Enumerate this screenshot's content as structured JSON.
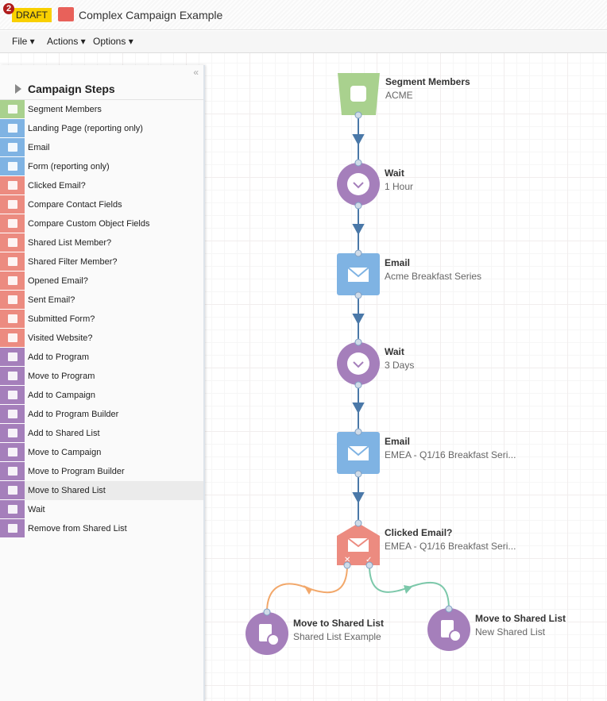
{
  "header": {
    "notification_count": "2",
    "status": "DRAFT",
    "title": "Complex Campaign Example"
  },
  "menu": {
    "file": "File ▾",
    "actions": "Actions ▾",
    "options": "Options ▾"
  },
  "panel": {
    "collapse": "«",
    "title": "Campaign Steps",
    "items": [
      {
        "label": "Segment Members",
        "color": "#a9d18e"
      },
      {
        "label": "Landing Page (reporting only)",
        "color": "#7fb3e3"
      },
      {
        "label": "Email",
        "color": "#7fb3e3"
      },
      {
        "label": "Form (reporting only)",
        "color": "#7fb3e3"
      },
      {
        "label": "Clicked Email?",
        "color": "#ec8b80"
      },
      {
        "label": "Compare Contact Fields",
        "color": "#ec8b80"
      },
      {
        "label": "Compare Custom Object Fields",
        "color": "#ec8b80"
      },
      {
        "label": "Shared List Member?",
        "color": "#ec8b80"
      },
      {
        "label": "Shared Filter Member?",
        "color": "#ec8b80"
      },
      {
        "label": "Opened Email?",
        "color": "#ec8b80"
      },
      {
        "label": "Sent Email?",
        "color": "#ec8b80"
      },
      {
        "label": "Submitted Form?",
        "color": "#ec8b80"
      },
      {
        "label": "Visited Website?",
        "color": "#ec8b80"
      },
      {
        "label": "Add to Program",
        "color": "#a57fbb"
      },
      {
        "label": "Move to Program",
        "color": "#a57fbb"
      },
      {
        "label": "Add to Campaign",
        "color": "#a57fbb"
      },
      {
        "label": "Add to Program Builder",
        "color": "#a57fbb"
      },
      {
        "label": "Add to Shared List",
        "color": "#a57fbb"
      },
      {
        "label": "Move to Campaign",
        "color": "#a57fbb"
      },
      {
        "label": "Move to Program Builder",
        "color": "#a57fbb"
      },
      {
        "label": "Move to Shared List",
        "color": "#a57fbb",
        "selected": true
      },
      {
        "label": "Wait",
        "color": "#a57fbb"
      },
      {
        "label": "Remove from Shared List",
        "color": "#a57fbb"
      }
    ]
  },
  "flow": {
    "nodes": [
      {
        "title": "Segment Members",
        "subtitle": "ACME"
      },
      {
        "title": "Wait",
        "subtitle": "1 Hour"
      },
      {
        "title": "Email",
        "subtitle": "Acme Breakfast Series"
      },
      {
        "title": "Wait",
        "subtitle": "3 Days"
      },
      {
        "title": "Email",
        "subtitle": "EMEA - Q1/16 Breakfast Seri..."
      },
      {
        "title": "Clicked Email?",
        "subtitle": "EMEA - Q1/16 Breakfast Seri..."
      },
      {
        "title": "Move to Shared List",
        "subtitle": "Shared List Example"
      },
      {
        "title": "Move to Shared List",
        "subtitle": "New Shared List"
      }
    ],
    "colors": {
      "segment": "#a9d18e",
      "wait": "#a57fbb",
      "email": "#7fb3e3",
      "decision": "#ec8b80",
      "action": "#a57fbb",
      "connector": "#4a78a8",
      "no_branch": "#f2a86b",
      "yes_branch": "#7cc8aa"
    }
  }
}
